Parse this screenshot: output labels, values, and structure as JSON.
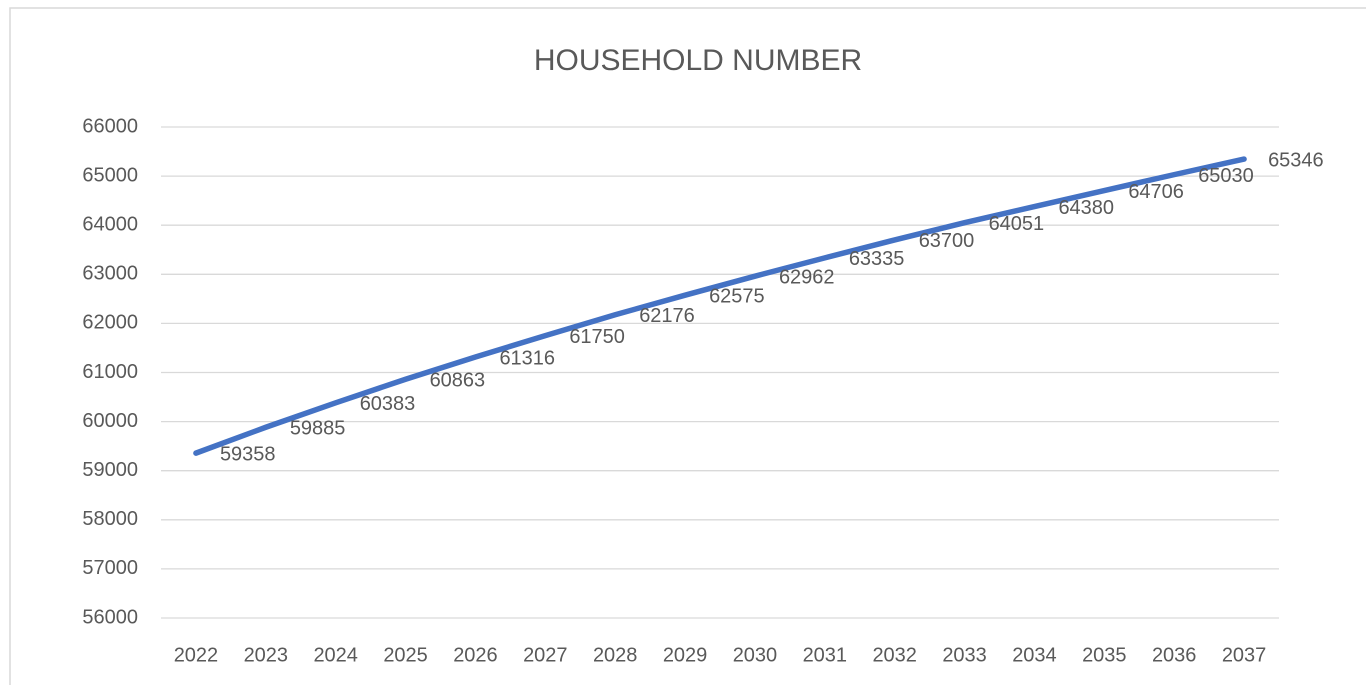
{
  "chart_data": {
    "type": "line",
    "title": "HOUSEHOLD NUMBER",
    "categories": [
      "2022",
      "2023",
      "2024",
      "2025",
      "2026",
      "2027",
      "2028",
      "2029",
      "2030",
      "2031",
      "2032",
      "2033",
      "2034",
      "2035",
      "2036",
      "2037"
    ],
    "values": [
      59358,
      59885,
      60383,
      60863,
      61316,
      61750,
      62176,
      62575,
      62962,
      63335,
      63700,
      64051,
      64380,
      64706,
      65030,
      65346
    ],
    "color": "#4472c4",
    "ylim": [
      56000,
      66000
    ],
    "yticks": [
      56000,
      57000,
      58000,
      59000,
      60000,
      61000,
      62000,
      63000,
      64000,
      65000,
      66000
    ],
    "grid": true,
    "data_labels": true
  }
}
